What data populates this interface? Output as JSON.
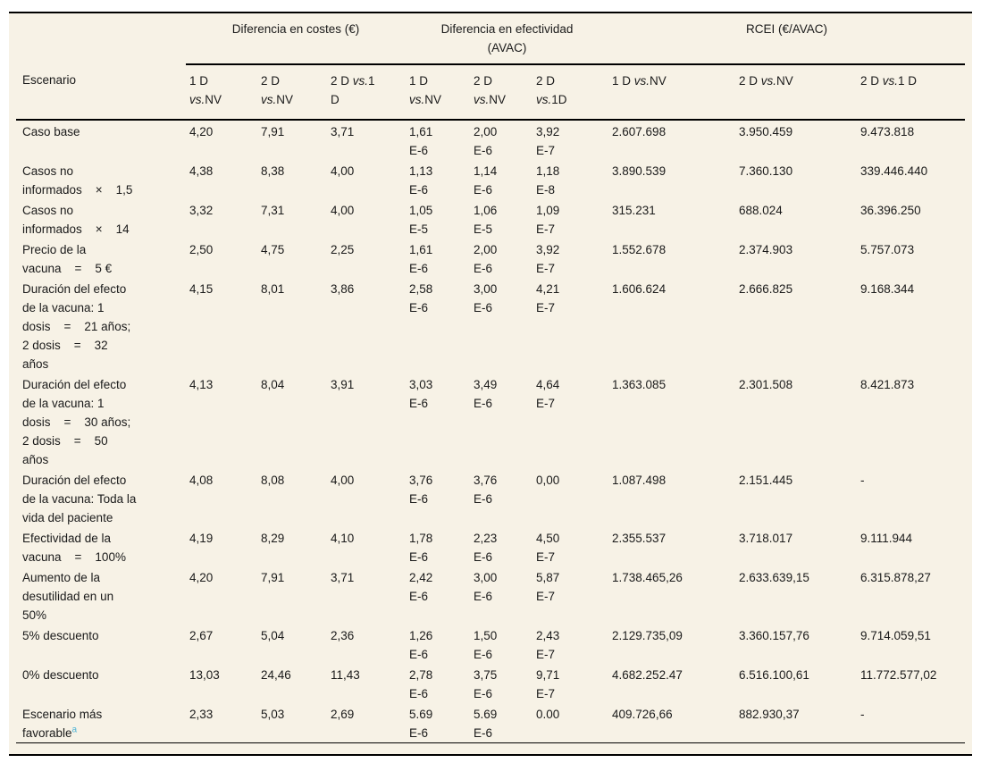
{
  "colors": {
    "sheet_background": "#f7f2e6",
    "rule_color": "#000000",
    "text_color": "#1a1a1a",
    "footnote_marker_color": "#4fb4d6"
  },
  "table": {
    "scenario_header": "Escenario",
    "groups": [
      {
        "label": "Diferencia en costes (€)"
      },
      {
        "label": "Diferencia en efectividad\n(AVAC)"
      },
      {
        "label": "RCEI (€/AVAC)"
      }
    ],
    "subheaders": [
      {
        "parts": [
          {
            "text": "1 D\n"
          },
          {
            "text": "vs.",
            "italic": true
          },
          {
            "text": "NV"
          }
        ]
      },
      {
        "parts": [
          {
            "text": "2 D\n"
          },
          {
            "text": "vs.",
            "italic": true
          },
          {
            "text": "NV"
          }
        ]
      },
      {
        "parts": [
          {
            "text": "2 D "
          },
          {
            "text": "vs.",
            "italic": true
          },
          {
            "text": "1\nD"
          }
        ]
      },
      {
        "parts": [
          {
            "text": "1 D\n"
          },
          {
            "text": "vs.",
            "italic": true
          },
          {
            "text": "NV"
          }
        ]
      },
      {
        "parts": [
          {
            "text": "2 D\n"
          },
          {
            "text": "vs.",
            "italic": true
          },
          {
            "text": "NV"
          }
        ]
      },
      {
        "parts": [
          {
            "text": "2 D\n"
          },
          {
            "text": "vs.",
            "italic": true
          },
          {
            "text": "1D"
          }
        ]
      },
      {
        "parts": [
          {
            "text": "1 D "
          },
          {
            "text": "vs.",
            "italic": true
          },
          {
            "text": "NV"
          }
        ]
      },
      {
        "parts": [
          {
            "text": "2 D "
          },
          {
            "text": "vs.",
            "italic": true
          },
          {
            "text": "NV"
          }
        ]
      },
      {
        "parts": [
          {
            "text": "2 D "
          },
          {
            "text": "vs.",
            "italic": true
          },
          {
            "text": "1 D"
          }
        ]
      }
    ],
    "rows": [
      {
        "label": "Caso base",
        "values": [
          "4,20",
          "7,91",
          "3,71",
          "1,61\nE-6",
          "2,00\nE-6",
          "3,92\nE-7",
          "2.607.698",
          "3.950.459",
          "9.473.818"
        ]
      },
      {
        "label": "Casos no\ninformados    ×    1,5",
        "values": [
          "4,38",
          "8,38",
          "4,00",
          "1,13\nE-6",
          "1,14\nE-6",
          "1,18\nE-8",
          "3.890.539",
          "7.360.130",
          "339.446.440"
        ]
      },
      {
        "label": "Casos no\ninformados    ×    14",
        "values": [
          "3,32",
          "7,31",
          "4,00",
          "1,05\nE-5",
          "1,06\nE-5",
          "1,09\nE-7",
          "315.231",
          "688.024",
          "36.396.250"
        ]
      },
      {
        "label": "Precio de la\nvacuna    =    5 €",
        "values": [
          "2,50",
          "4,75",
          "2,25",
          "1,61\nE-6",
          "2,00\nE-6",
          "3,92\nE-7",
          "1.552.678",
          "2.374.903",
          "5.757.073"
        ]
      },
      {
        "label": "Duración del efecto\nde la vacuna: 1\ndosis    =    21 años;\n2 dosis    =    32\naños",
        "values": [
          "4,15",
          "8,01",
          "3,86",
          "2,58\nE-6",
          "3,00\nE-6",
          "4,21\nE-7",
          "1.606.624",
          "2.666.825",
          "9.168.344"
        ]
      },
      {
        "label": "Duración del efecto\nde la vacuna: 1\ndosis    =    30 años;\n2 dosis    =    50\naños",
        "values": [
          "4,13",
          "8,04",
          "3,91",
          "3,03\nE-6",
          "3,49\nE-6",
          "4,64\nE-7",
          "1.363.085",
          "2.301.508",
          "8.421.873"
        ]
      },
      {
        "label": "Duración del efecto\nde la vacuna: Toda la\nvida del paciente",
        "values": [
          "4,08",
          "8,08",
          "4,00",
          "3,76\nE-6",
          "3,76\nE-6",
          "0,00",
          "1.087.498",
          "2.151.445",
          "-"
        ]
      },
      {
        "label": "Efectividad de la\nvacuna    =    100%",
        "values": [
          "4,19",
          "8,29",
          "4,10",
          "1,78\nE-6",
          "2,23\nE-6",
          "4,50\nE-7",
          "2.355.537",
          "3.718.017",
          "9.111.944"
        ]
      },
      {
        "label": "Aumento de la\ndesutilidad en un\n50%",
        "values": [
          "4,20",
          "7,91",
          "3,71",
          "2,42\nE-6",
          "3,00\nE-6",
          "5,87\nE-7",
          "1.738.465,26",
          "2.633.639,15",
          "6.315.878,27"
        ]
      },
      {
        "label": "5% descuento",
        "values": [
          "2,67",
          "5,04",
          "2,36",
          "1,26\nE-6",
          "1,50\nE-6",
          "2,43\nE-7",
          "2.129.735,09",
          "3.360.157,76",
          "9.714.059,51"
        ]
      },
      {
        "label": "0% descuento",
        "values": [
          "13,03",
          "24,46",
          "11,43",
          "2,78\nE-6",
          "3,75\nE-6",
          "9,71\nE-7",
          "4.682.252.47",
          "6.516.100,61",
          "11.772.577,02"
        ]
      },
      {
        "label": "Escenario más\nfavorable",
        "footnote": "a",
        "values": [
          "2,33",
          "5,03",
          "2,69",
          "5.69\nE-6",
          "5.69\nE-6",
          "0.00",
          "409.726,66",
          "882.930,37",
          "-"
        ]
      }
    ]
  }
}
